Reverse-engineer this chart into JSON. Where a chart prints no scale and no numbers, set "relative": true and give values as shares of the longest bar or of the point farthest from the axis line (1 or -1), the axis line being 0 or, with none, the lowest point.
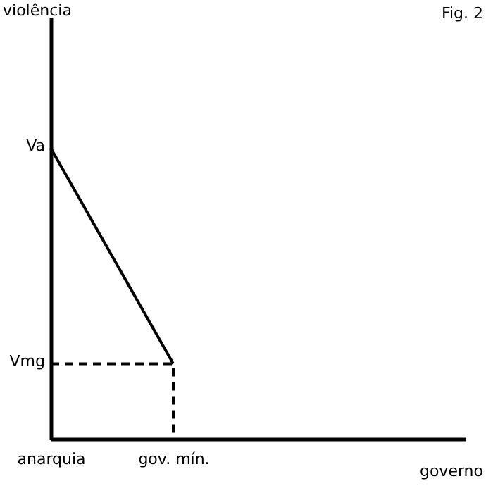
{
  "chart_data": {
    "type": "line",
    "relative": true,
    "annotations": [
      "Fig. 2",
      "violência",
      "governo",
      "Va",
      "Vmg"
    ],
    "categories": [
      "anarquia",
      "gov. mín."
    ],
    "series": [
      {
        "values": [
          1,
          0.26
        ],
        "color": "#000000",
        "line_style": "solid"
      },
      {
        "x": [
          "anarquia",
          "gov. mín.",
          "gov. mín."
        ],
        "values": [
          0.26,
          0.26,
          0
        ],
        "color": "#000000",
        "line_style": "dashed"
      }
    ],
    "marker": "none"
  }
}
